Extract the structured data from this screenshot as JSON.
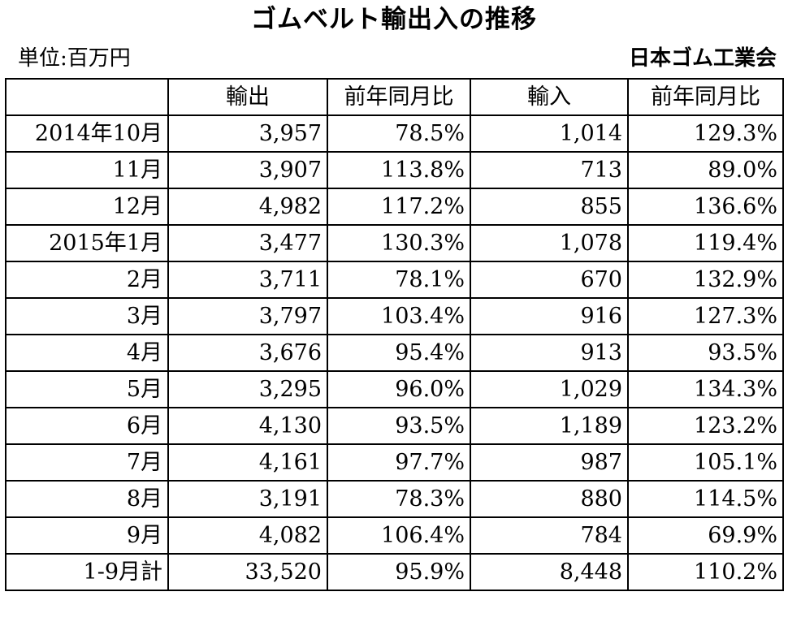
{
  "title": "ゴムベルト輸出入の推移",
  "unit_label": "単位:百万円",
  "source": "日本ゴム工業会",
  "table": {
    "headers": [
      "",
      "輸出",
      "前年同月比",
      "輸入",
      "前年同月比"
    ],
    "rows": [
      [
        "2014年10月",
        "3,957",
        "78.5%",
        "1,014",
        "129.3%"
      ],
      [
        "11月",
        "3,907",
        "113.8%",
        "713",
        "89.0%"
      ],
      [
        "12月",
        "4,982",
        "117.2%",
        "855",
        "136.6%"
      ],
      [
        "2015年1月",
        "3,477",
        "130.3%",
        "1,078",
        "119.4%"
      ],
      [
        "2月",
        "3,711",
        "78.1%",
        "670",
        "132.9%"
      ],
      [
        "3月",
        "3,797",
        "103.4%",
        "916",
        "127.3%"
      ],
      [
        "4月",
        "3,676",
        "95.4%",
        "913",
        "93.5%"
      ],
      [
        "5月",
        "3,295",
        "96.0%",
        "1,029",
        "134.3%"
      ],
      [
        "6月",
        "4,130",
        "93.5%",
        "1,189",
        "123.2%"
      ],
      [
        "7月",
        "4,161",
        "97.7%",
        "987",
        "105.1%"
      ],
      [
        "8月",
        "3,191",
        "78.3%",
        "880",
        "114.5%"
      ],
      [
        "9月",
        "4,082",
        "106.4%",
        "784",
        "69.9%"
      ],
      [
        "1-9月計",
        "33,520",
        "95.9%",
        "8,448",
        "110.2%"
      ]
    ]
  }
}
